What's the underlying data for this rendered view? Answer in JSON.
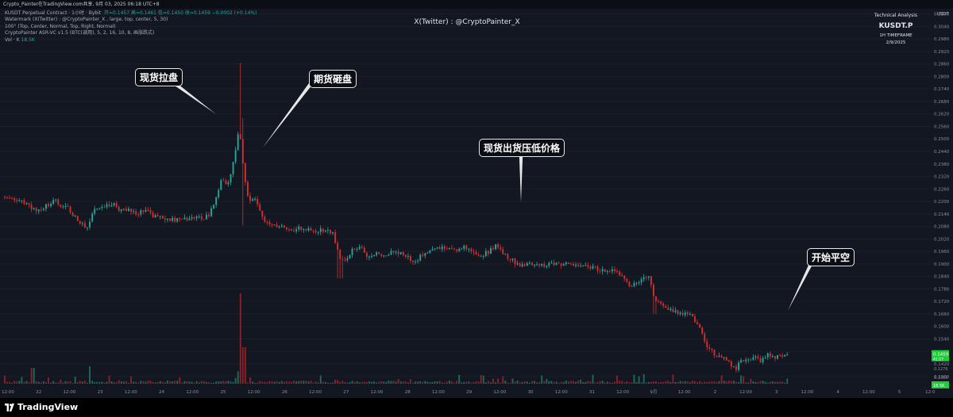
{
  "header": {
    "top_text": "Crypto_Painter在TradingView.com共享, 9月 03, 2025 06:18 UTC+8",
    "legend_title": "KUSDT Perpetual Contract · 1小时 · Bybit",
    "legend_ohlc": "开=0.1457 高=0.1461 低=0.1450 收=0.1459 −0.0002 (+0.14%)",
    "legend_line2": "Watermark (X(Twitter) : @CryptoPainter_X , large, top, center, 5, 30)",
    "legend_line3": "100° (Top, Center, Normal, Top, Right, Normal)",
    "legend_line4": "CryptoPainter ASR-VC v1.5 (BTC(调用), 5, 2, 16, 10, 8, 画涨跌式)",
    "legend_vol_label": "Vol · K",
    "legend_vol_value": "18.5K",
    "currency": "USDT"
  },
  "watermark": "X(Twitter) : @CryptoPainter_X",
  "ta_box": {
    "line1": "Technical Analysis",
    "line2": "KUSDT.P",
    "line3": "1H TIMEFRAME",
    "line4": "2/9/2025"
  },
  "annotations": [
    {
      "text": "现货拉盘"
    },
    {
      "text": "期货砸盘"
    },
    {
      "text": "现货出货压低价格"
    },
    {
      "text": "开始平空"
    }
  ],
  "footer": {
    "brand": "TradingView"
  },
  "chart_data": {
    "type": "candlestick",
    "symbol": "KUSDT.P",
    "timeframe": "1H",
    "y_ticks": [
      0.31,
      0.304,
      0.298,
      0.292,
      0.286,
      0.28,
      0.274,
      0.268,
      0.262,
      0.256,
      0.25,
      0.244,
      0.238,
      0.232,
      0.226,
      0.22,
      0.214,
      0.208,
      0.202,
      0.196,
      0.19,
      0.184,
      0.178,
      0.172,
      0.166,
      0.16,
      0.154,
      0.148,
      0.142,
      0.136
    ],
    "y_tick_labels": [
      "0.3100",
      "0.3040",
      "0.2980",
      "0.2920",
      "0.2860",
      "0.2800",
      "0.2740",
      "0.2680",
      "0.2620",
      "0.2560",
      "0.2500",
      "0.2440",
      "0.2380",
      "0.2320",
      "0.2260",
      "0.2200",
      "0.2140",
      "0.2080",
      "0.2020",
      "0.1960",
      "0.1900",
      "0.1840",
      "0.1780",
      "0.1720",
      "0.1660",
      "0.1600",
      "0.1540",
      "0.1480",
      "0.1420",
      "0.1360"
    ],
    "ylim": [
      0.1325,
      0.3125
    ],
    "last_price": "0.1459",
    "last_price_sub": "41:27",
    "vol_ticks": [
      "0.1316",
      "0.1276"
    ],
    "vol_label": "18.5K",
    "x_tick_labels": [
      "12:00",
      "22",
      "12:00",
      "23",
      "12:00",
      "24",
      "12:00",
      "25",
      "12:00",
      "26",
      "12:00",
      "27",
      "12:00",
      "28",
      "12:00",
      "29",
      "12:00",
      "30",
      "12:00",
      "31",
      "12:00",
      "9月",
      "12:00",
      "2",
      "12:00",
      "3",
      "12:00",
      "4",
      "12:00",
      "5",
      "12:0"
    ],
    "price_path": [
      [
        0,
        0.2225
      ],
      [
        14,
        0.2215
      ],
      [
        25,
        0.219
      ],
      [
        30,
        0.221
      ],
      [
        38,
        0.2175
      ],
      [
        49,
        0.215
      ],
      [
        58,
        0.2175
      ],
      [
        73,
        0.221
      ],
      [
        80,
        0.216
      ],
      [
        84,
        0.218
      ],
      [
        91,
        0.215
      ],
      [
        99,
        0.211
      ],
      [
        105,
        0.2095
      ],
      [
        107,
        0.2075
      ],
      [
        114,
        0.208
      ],
      [
        120,
        0.2155
      ],
      [
        125,
        0.217
      ],
      [
        136,
        0.218
      ],
      [
        146,
        0.2195
      ],
      [
        152,
        0.216
      ],
      [
        158,
        0.2165
      ],
      [
        166,
        0.2155
      ],
      [
        176,
        0.2145
      ],
      [
        186,
        0.216
      ],
      [
        196,
        0.213
      ],
      [
        211,
        0.2115
      ],
      [
        228,
        0.211
      ],
      [
        246,
        0.213
      ],
      [
        256,
        0.2115
      ],
      [
        266,
        0.214
      ],
      [
        273,
        0.219
      ],
      [
        276,
        0.224
      ],
      [
        279,
        0.229
      ],
      [
        283,
        0.231
      ],
      [
        287,
        0.227
      ],
      [
        291,
        0.232
      ],
      [
        295,
        0.237
      ],
      [
        299,
        0.245
      ],
      [
        303,
        0.254
      ],
      [
        306,
        0.246
      ],
      [
        309,
        0.235
      ],
      [
        313,
        0.2235
      ],
      [
        318,
        0.219
      ],
      [
        322,
        0.223
      ],
      [
        326,
        0.22
      ],
      [
        330,
        0.214
      ],
      [
        336,
        0.2105
      ],
      [
        342,
        0.209
      ],
      [
        350,
        0.208
      ],
      [
        362,
        0.2075
      ],
      [
        372,
        0.206
      ],
      [
        384,
        0.2075
      ],
      [
        397,
        0.2055
      ],
      [
        410,
        0.206
      ],
      [
        422,
        0.205
      ],
      [
        427,
        0.196
      ],
      [
        433,
        0.191
      ],
      [
        440,
        0.194
      ],
      [
        447,
        0.197
      ],
      [
        456,
        0.1985
      ],
      [
        462,
        0.1935
      ],
      [
        471,
        0.195
      ],
      [
        483,
        0.1945
      ],
      [
        496,
        0.1955
      ],
      [
        508,
        0.195
      ],
      [
        517,
        0.1925
      ],
      [
        525,
        0.1905
      ],
      [
        531,
        0.1935
      ],
      [
        541,
        0.1955
      ],
      [
        553,
        0.1975
      ],
      [
        566,
        0.198
      ],
      [
        578,
        0.197
      ],
      [
        586,
        0.1985
      ],
      [
        596,
        0.1955
      ],
      [
        606,
        0.1935
      ],
      [
        618,
        0.196
      ],
      [
        628,
        0.1995
      ],
      [
        636,
        0.1945
      ],
      [
        646,
        0.192
      ],
      [
        656,
        0.1895
      ],
      [
        668,
        0.1905
      ],
      [
        678,
        0.1895
      ],
      [
        690,
        0.189
      ],
      [
        700,
        0.1905
      ],
      [
        712,
        0.19
      ],
      [
        723,
        0.189
      ],
      [
        733,
        0.19
      ],
      [
        743,
        0.1885
      ],
      [
        751,
        0.188
      ],
      [
        761,
        0.1865
      ],
      [
        771,
        0.1875
      ],
      [
        779,
        0.186
      ],
      [
        787,
        0.1825
      ],
      [
        795,
        0.18
      ],
      [
        803,
        0.181
      ],
      [
        811,
        0.183
      ],
      [
        819,
        0.184
      ],
      [
        825,
        0.174
      ],
      [
        829,
        0.172
      ],
      [
        835,
        0.171
      ],
      [
        843,
        0.169
      ],
      [
        851,
        0.167
      ],
      [
        861,
        0.166
      ],
      [
        871,
        0.166
      ],
      [
        881,
        0.161
      ],
      [
        887,
        0.156
      ],
      [
        893,
        0.15
      ],
      [
        901,
        0.147
      ],
      [
        911,
        0.145
      ],
      [
        921,
        0.142
      ],
      [
        929,
        0.14
      ],
      [
        935,
        0.143
      ],
      [
        941,
        0.144
      ],
      [
        951,
        0.145
      ],
      [
        961,
        0.143
      ],
      [
        969,
        0.147
      ],
      [
        977,
        0.1455
      ],
      [
        987,
        0.146
      ],
      [
        993,
        0.1459
      ]
    ]
  }
}
